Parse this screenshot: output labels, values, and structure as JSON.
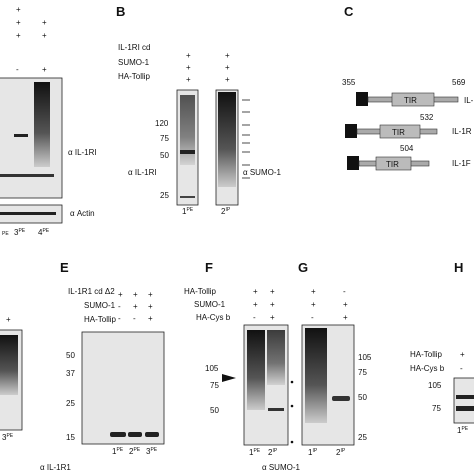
{
  "panel_a": {
    "signs": [
      [
        "+"
      ],
      [
        "+",
        "+"
      ],
      [
        "+",
        "+"
      ],
      [
        "-",
        "+"
      ]
    ],
    "labels": [
      "α IL-1RI",
      "α Actin"
    ],
    "lanes": [
      {
        "sup": "PE"
      },
      {
        "num": "3",
        "sup": "PE"
      },
      {
        "num": "4",
        "sup": "PE"
      }
    ]
  },
  "panel_b": {
    "letter": "B",
    "rows": [
      "IL-1RI cd",
      "SUMO-1",
      "HA-Tollip"
    ],
    "signs": [
      [
        "+",
        "+"
      ],
      [
        "+",
        "+"
      ],
      [
        "+",
        "+"
      ]
    ],
    "markers": [
      "120",
      "75",
      "50",
      "25"
    ],
    "labels": [
      "α IL-1RI",
      "α SUMO-1"
    ],
    "lanes": [
      {
        "num": "1",
        "sup": "PE"
      },
      {
        "num": "2",
        "sup": "IP"
      }
    ]
  },
  "panel_c": {
    "letter": "C",
    "positions": [
      "355",
      "569",
      "532",
      "504"
    ],
    "domain": "TIR",
    "names": [
      "IL-",
      "IL-1R",
      "IL-1F"
    ]
  },
  "panel_d": {
    "signs": [
      "+"
    ],
    "lane": {
      "num": "3",
      "sup": "PE"
    }
  },
  "panel_e": {
    "letter": "E",
    "rows": [
      "IL-1R1 cd Δ2",
      "SUMO-1",
      "HA-Tollip"
    ],
    "signs": [
      [
        "+",
        "+",
        "+"
      ],
      [
        "-",
        "+",
        "+"
      ],
      [
        "-",
        "-",
        "+"
      ]
    ],
    "markers": [
      "50",
      "37",
      "25",
      "15"
    ],
    "label": "α IL-1R1",
    "lanes": [
      {
        "num": "1",
        "sup": "PE"
      },
      {
        "num": "2",
        "sup": "PE"
      },
      {
        "num": "3",
        "sup": "PE"
      }
    ]
  },
  "panel_f": {
    "letter": "F",
    "rows": [
      "HA-Tollip",
      "SUMO-1",
      "HA-Cys b"
    ],
    "signs": [
      [
        "+",
        "+",
        "+",
        "-"
      ],
      [
        "+",
        "+",
        "+",
        "+"
      ],
      [
        "-",
        "+",
        "-",
        "+"
      ]
    ],
    "markers": [
      "105",
      "75",
      "50"
    ],
    "lanes": [
      {
        "num": "1",
        "sup": "PE"
      },
      {
        "num": "2",
        "sup": "IP"
      }
    ]
  },
  "panel_g": {
    "letter": "G",
    "markers": [
      "105",
      "75",
      "50",
      "25"
    ],
    "label": "α SUMO-1",
    "lanes": [
      {
        "num": "1",
        "sup": "IP"
      },
      {
        "num": "2",
        "sup": "IP"
      }
    ]
  },
  "panel_h": {
    "letter": "H",
    "rows": [
      "HA-Tollip",
      "HA-Cys b"
    ],
    "signs": [
      "+",
      "-"
    ],
    "markers": [
      "105",
      "75"
    ],
    "lane": {
      "num": "1",
      "sup": "PE"
    }
  }
}
